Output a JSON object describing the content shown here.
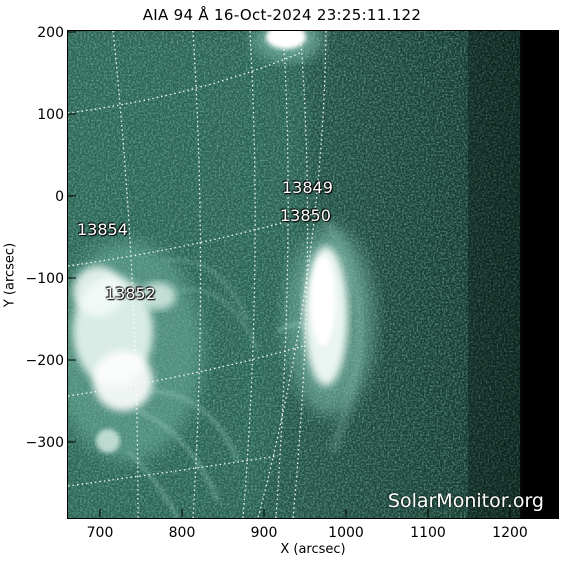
{
  "title": "AIA 94 Å 16-Oct-2024 23:25:11.122",
  "x_axis": {
    "label": "X (arcsec)",
    "ticks": [
      "700",
      "800",
      "900",
      "1000",
      "1100",
      "1200"
    ],
    "range": [
      655,
      1255
    ]
  },
  "y_axis": {
    "label": "Y (arcsec)",
    "ticks": [
      "200",
      "100",
      "0",
      "−100",
      "−200",
      "−300"
    ],
    "range": [
      -398,
      200
    ]
  },
  "active_regions": [
    {
      "number": "13849",
      "x": 925,
      "y": 8
    },
    {
      "number": "13850",
      "x": 922,
      "y": -25
    },
    {
      "number": "13854",
      "x": 696,
      "y": -43
    },
    {
      "number": "13852",
      "x": 710,
      "y": -120
    }
  ],
  "watermark": "SolarMonitor.org",
  "colors": {
    "background_corona": "#1d4a3e",
    "bright_emission": "#f2fbf7",
    "off_limb_dark": "#000000",
    "grid_lines": "#ffffff"
  }
}
